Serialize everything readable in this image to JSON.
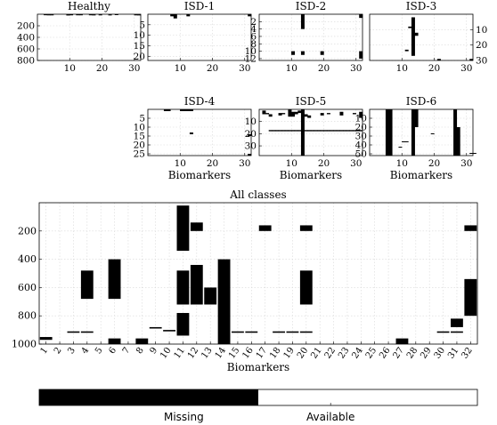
{
  "chart_data": [
    {
      "type": "heatmap",
      "title": "Healthy",
      "ylim": [
        0,
        800
      ],
      "xlim": [
        0,
        32
      ],
      "xticks": [
        "10",
        "20",
        "30"
      ],
      "yticks": [
        "200",
        "400",
        "600",
        "800"
      ],
      "ytick_side": "left",
      "xlabel": "",
      "missing_bands": [
        [
          3,
          2,
          3
        ],
        [
          4,
          4,
          5
        ],
        [
          5,
          4,
          6
        ],
        [
          10,
          2,
          5
        ],
        [
          10,
          6,
          7
        ],
        [
          11,
          1,
          2
        ],
        [
          11,
          3,
          7
        ],
        [
          13,
          3,
          4
        ],
        [
          14,
          3,
          7
        ],
        [
          17,
          3,
          4
        ],
        [
          18,
          5,
          6
        ],
        [
          20,
          4,
          6
        ],
        [
          23,
          5,
          6
        ],
        [
          25,
          0,
          1
        ],
        [
          31,
          4,
          5
        ],
        [
          32,
          5,
          7
        ]
      ]
    },
    {
      "type": "heatmap",
      "title": "ISD-1",
      "ylim": [
        0,
        22
      ],
      "xlim": [
        0,
        32
      ],
      "xticks": [
        "10",
        "20",
        "30"
      ],
      "yticks": [
        "5",
        "10",
        "15",
        "20"
      ],
      "ytick_side": "left",
      "xlabel": "",
      "missing_bands": [
        [
          8,
          0,
          1
        ],
        [
          9,
          0,
          2
        ],
        [
          13,
          0,
          1
        ],
        [
          32,
          0,
          1
        ]
      ]
    },
    {
      "type": "heatmap",
      "title": "ISD-2",
      "ylim": [
        0,
        12.5
      ],
      "xlim": [
        0,
        32
      ],
      "xticks": [
        "10",
        "20",
        "30"
      ],
      "yticks": [
        "2",
        "4",
        "6",
        "8",
        "10",
        "12"
      ],
      "ytick_side": "left",
      "xlabel": "",
      "missing_bands": [
        [
          14,
          0,
          4
        ],
        [
          11,
          10,
          11
        ],
        [
          14,
          10,
          11
        ],
        [
          20,
          10,
          11
        ],
        [
          32,
          0,
          1
        ],
        [
          32,
          10,
          12
        ]
      ]
    },
    {
      "type": "heatmap",
      "title": "ISD-3",
      "ylim": [
        0,
        30
      ],
      "xlim": [
        0,
        32
      ],
      "xticks": [
        "10",
        "20",
        "30"
      ],
      "yticks": [
        "10",
        "20",
        "30"
      ],
      "ytick_side": "right",
      "xlabel": "",
      "missing_bands": [
        [
          14,
          2,
          27
        ],
        [
          13,
          8,
          9
        ],
        [
          15,
          12,
          14
        ],
        [
          12,
          23,
          24
        ],
        [
          22,
          29,
          30
        ],
        [
          32,
          29,
          30
        ]
      ]
    },
    {
      "type": "heatmap",
      "title": "ISD-4",
      "ylim": [
        0,
        26
      ],
      "xlim": [
        0,
        32
      ],
      "xticks": [
        "10",
        "20",
        "30"
      ],
      "yticks": [
        "5",
        "10",
        "15",
        "20",
        "25"
      ],
      "ytick_side": "left",
      "xlabel": "Biomarkers",
      "missing_bands": [
        [
          6,
          0,
          1
        ],
        [
          7,
          0,
          1
        ],
        [
          11,
          0,
          1
        ],
        [
          12,
          0,
          1
        ],
        [
          13,
          0,
          1
        ],
        [
          14,
          0,
          1
        ],
        [
          14,
          13,
          14
        ],
        [
          32,
          14,
          15
        ],
        [
          32,
          25,
          26
        ]
      ]
    },
    {
      "type": "heatmap",
      "title": "ISD-5",
      "ylim": [
        0,
        38
      ],
      "xlim": [
        0,
        32
      ],
      "xticks": [
        "10",
        "20",
        "30"
      ],
      "yticks": [
        "10",
        "20",
        "30"
      ],
      "ytick_side": "left",
      "xlabel": "Biomarkers",
      "missing_bands": [
        [
          2,
          1,
          4
        ],
        [
          3,
          3,
          4
        ],
        [
          4,
          4,
          6
        ],
        [
          7,
          3,
          5
        ],
        [
          8,
          3,
          4
        ],
        [
          10,
          0,
          6
        ],
        [
          11,
          2,
          6
        ],
        [
          12,
          2,
          4
        ],
        [
          13,
          1,
          3
        ],
        [
          14,
          0,
          38
        ],
        [
          15,
          4,
          6
        ],
        [
          16,
          5,
          7
        ],
        [
          20,
          3,
          5
        ],
        [
          22,
          3,
          4
        ],
        [
          26,
          2,
          5
        ],
        [
          30,
          3,
          4
        ],
        [
          32,
          2,
          7
        ],
        [
          4,
          17,
          18
        ],
        [
          5,
          17,
          18
        ],
        [
          6,
          17,
          18
        ],
        [
          7,
          17,
          18
        ],
        [
          8,
          17,
          18
        ],
        [
          9,
          17,
          18
        ],
        [
          10,
          17,
          18
        ],
        [
          11,
          17,
          18
        ],
        [
          12,
          17,
          18
        ],
        [
          13,
          17,
          18
        ],
        [
          15,
          17,
          18
        ],
        [
          16,
          17,
          18
        ],
        [
          17,
          17,
          18
        ],
        [
          18,
          17,
          18
        ],
        [
          19,
          17,
          18
        ],
        [
          20,
          17,
          18
        ],
        [
          21,
          17,
          18
        ],
        [
          22,
          17,
          18
        ],
        [
          23,
          17,
          18
        ],
        [
          24,
          17,
          18
        ],
        [
          25,
          17,
          18
        ],
        [
          26,
          17,
          18
        ],
        [
          27,
          17,
          18
        ],
        [
          28,
          17,
          18
        ],
        [
          29,
          17,
          18
        ],
        [
          30,
          17,
          18
        ],
        [
          31,
          17,
          18
        ],
        [
          32,
          17,
          18
        ]
      ]
    },
    {
      "type": "heatmap",
      "title": "ISD-6",
      "ylim": [
        0,
        52
      ],
      "xlim": [
        0,
        32
      ],
      "xticks": [
        "10",
        "20",
        "30"
      ],
      "yticks": [
        "10",
        "20",
        "30",
        "40",
        "50"
      ],
      "ytick_side": "left",
      "xlabel": "Biomarkers",
      "missing_bands": [
        [
          6,
          0,
          52
        ],
        [
          7,
          0,
          52
        ],
        [
          14,
          0,
          52
        ],
        [
          15,
          0,
          20
        ],
        [
          27,
          0,
          52
        ],
        [
          28,
          20,
          52
        ],
        [
          11,
          36,
          37
        ],
        [
          12,
          36,
          37
        ],
        [
          20,
          27,
          28
        ],
        [
          10,
          42,
          43
        ],
        [
          32,
          49,
          50
        ],
        [
          33,
          49,
          50
        ]
      ]
    },
    {
      "type": "heatmap",
      "title": "All classes",
      "ylim": [
        0,
        1000
      ],
      "xlim": [
        0.5,
        32.5
      ],
      "x": [
        "1",
        "2",
        "3",
        "4",
        "5",
        "6",
        "7",
        "8",
        "9",
        "10",
        "11",
        "12",
        "13",
        "14",
        "15",
        "16",
        "17",
        "18",
        "19",
        "20",
        "21",
        "22",
        "23",
        "24",
        "25",
        "26",
        "27",
        "28",
        "29",
        "30",
        "31",
        "32"
      ],
      "yticks": [
        "200",
        "400",
        "600",
        "800",
        "1000"
      ],
      "ytick_side": "left",
      "xlabel": "Biomarkers",
      "missing_bands": [
        [
          11,
          20,
          340
        ],
        [
          11,
          480,
          720
        ],
        [
          11,
          780,
          940
        ],
        [
          12,
          440,
          720
        ],
        [
          13,
          600,
          720
        ],
        [
          14,
          400,
          1000
        ],
        [
          4,
          480,
          680
        ],
        [
          6,
          400,
          680
        ],
        [
          6,
          960,
          1000
        ],
        [
          8,
          960,
          1000
        ],
        [
          20,
          480,
          720
        ],
        [
          27,
          960,
          1000
        ],
        [
          32,
          540,
          800
        ],
        [
          17,
          160,
          200
        ],
        [
          20,
          160,
          200
        ],
        [
          32,
          160,
          200
        ],
        [
          31,
          820,
          880
        ],
        [
          3,
          910,
          920
        ],
        [
          4,
          910,
          920
        ],
        [
          19,
          910,
          920
        ],
        [
          20,
          910,
          920
        ],
        [
          30,
          910,
          920
        ],
        [
          31,
          910,
          920
        ],
        [
          1,
          950,
          970
        ],
        [
          9,
          880,
          890
        ],
        [
          10,
          900,
          910
        ],
        [
          15,
          910,
          920
        ],
        [
          16,
          910,
          920
        ],
        [
          18,
          910,
          920
        ],
        [
          12,
          140,
          200
        ]
      ]
    }
  ],
  "legend": {
    "missing_label": "Missing",
    "available_label": "Available",
    "missing_fraction": 0.5
  }
}
